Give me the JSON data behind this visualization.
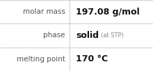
{
  "rows": [
    {
      "label": "molar mass",
      "value": "197.08 g/mol",
      "value_suffix": null
    },
    {
      "label": "phase",
      "value": "solid",
      "value_suffix": " (at STP)"
    },
    {
      "label": "melting point",
      "value": "170 °C",
      "value_suffix": null
    }
  ],
  "background_color": "#ffffff",
  "border_color": "#bbbbbb",
  "label_color": "#555555",
  "value_color": "#111111",
  "suffix_color": "#888888",
  "label_fontsize": 7.5,
  "value_fontsize": 9.0,
  "suffix_fontsize": 6.0,
  "col_split": 0.455,
  "fig_width": 2.2,
  "fig_height": 1.03,
  "dpi": 100
}
